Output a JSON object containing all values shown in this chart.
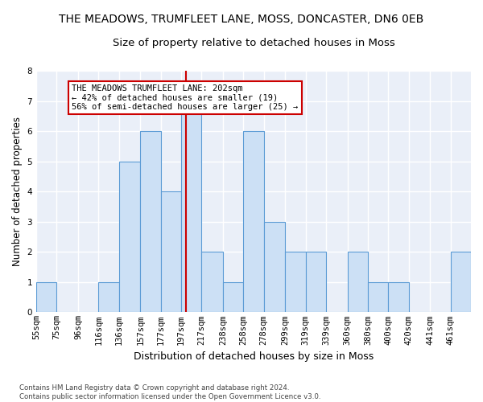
{
  "title1": "THE MEADOWS, TRUMFLEET LANE, MOSS, DONCASTER, DN6 0EB",
  "title2": "Size of property relative to detached houses in Moss",
  "xlabel": "Distribution of detached houses by size in Moss",
  "ylabel": "Number of detached properties",
  "footnote": "Contains HM Land Registry data © Crown copyright and database right 2024.\nContains public sector information licensed under the Open Government Licence v3.0.",
  "bin_labels": [
    "55sqm",
    "75sqm",
    "96sqm",
    "116sqm",
    "136sqm",
    "157sqm",
    "177sqm",
    "197sqm",
    "217sqm",
    "238sqm",
    "258sqm",
    "278sqm",
    "299sqm",
    "319sqm",
    "339sqm",
    "360sqm",
    "380sqm",
    "400sqm",
    "420sqm",
    "441sqm",
    "461sqm"
  ],
  "bin_edges": [
    55,
    75,
    96,
    116,
    136,
    157,
    177,
    197,
    217,
    238,
    258,
    278,
    299,
    319,
    339,
    360,
    380,
    400,
    420,
    441,
    461,
    481
  ],
  "bar_heights": [
    1,
    0,
    0,
    1,
    5,
    6,
    4,
    7,
    2,
    1,
    6,
    3,
    2,
    2,
    0,
    2,
    1,
    1,
    0,
    0,
    2
  ],
  "bar_color": "#cce0f5",
  "bar_edge_color": "#5b9bd5",
  "ref_line_x": 202,
  "ref_line_color": "#cc0000",
  "annotation_text": "THE MEADOWS TRUMFLEET LANE: 202sqm\n← 42% of detached houses are smaller (19)\n56% of semi-detached houses are larger (25) →",
  "annotation_box_color": "#cc0000",
  "ylim": [
    0,
    8
  ],
  "yticks": [
    0,
    1,
    2,
    3,
    4,
    5,
    6,
    7,
    8
  ],
  "bg_color": "#eaeff8",
  "grid_color": "#ffffff",
  "title1_fontsize": 10,
  "title2_fontsize": 9.5,
  "xlabel_fontsize": 9,
  "ylabel_fontsize": 8.5,
  "tick_fontsize": 7.5
}
